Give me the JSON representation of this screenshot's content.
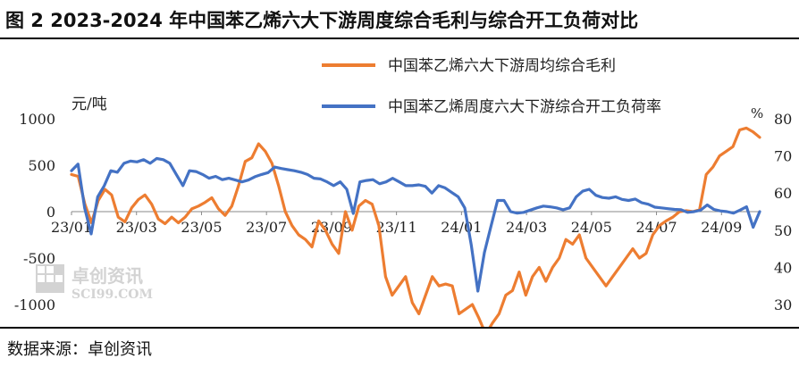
{
  "title": "图 2 2023-2024 年中国苯乙烯六大下游周度综合毛利与综合开工负荷对比",
  "source": "数据来源：卓创资讯",
  "watermark": {
    "cn": "卓创资讯",
    "en": "SCI99.COM"
  },
  "colors": {
    "orange": "#ED7D31",
    "blue": "#4472C4",
    "axis": "#888888",
    "text": "#222222"
  },
  "chart_data": {
    "type": "line",
    "left_axis": {
      "label": "元/吨",
      "ticks": [
        "1000",
        "500",
        "0",
        "-500",
        "-1000"
      ],
      "range": [
        -1000,
        1000
      ]
    },
    "right_axis": {
      "label": "%",
      "ticks": [
        "80",
        "70",
        "60",
        "50",
        "40",
        "30"
      ],
      "range": [
        30,
        80
      ]
    },
    "x_ticks": [
      "23/01",
      "23/03",
      "23/05",
      "23/07",
      "23/09",
      "23/11",
      "24/01",
      "24/03",
      "24/05",
      "24/07",
      "24/09"
    ],
    "legend": {
      "placement": "top-right"
    },
    "series": [
      {
        "name": "中国苯乙烯六大下游周均综合毛利",
        "axis": "left",
        "color": "#ED7D31",
        "values": [
          400,
          380,
          80,
          -120,
          120,
          240,
          180,
          -60,
          -110,
          40,
          130,
          180,
          80,
          -80,
          -130,
          -60,
          -120,
          -60,
          30,
          60,
          100,
          150,
          30,
          -40,
          60,
          280,
          540,
          580,
          730,
          650,
          520,
          280,
          0,
          -150,
          -250,
          -300,
          -380,
          -100,
          -200,
          -350,
          -450,
          0,
          -200,
          60,
          120,
          80,
          -150,
          -700,
          -900,
          -800,
          -700,
          -980,
          -1100,
          -900,
          -700,
          -800,
          -780,
          -800,
          -1100,
          -1050,
          -1000,
          -1150,
          -1320,
          -1200,
          -1100,
          -900,
          -850,
          -650,
          -900,
          -700,
          -600,
          -750,
          -600,
          -500,
          -300,
          -350,
          -250,
          -500,
          -600,
          -700,
          -800,
          -700,
          -600,
          -500,
          -400,
          -500,
          -450,
          -250,
          -150,
          -100,
          -60,
          0,
          10,
          0,
          20,
          400,
          480,
          600,
          650,
          700,
          880,
          900,
          860,
          800
        ]
      },
      {
        "name": "中国苯乙烯周度六大下游综合开工负荷率",
        "axis": "right",
        "color": "#4472C4",
        "values": [
          66,
          67.8,
          56,
          49,
          59,
          62,
          66,
          65.6,
          68,
          68.6,
          68.4,
          69,
          68,
          69.3,
          69,
          68,
          65,
          62,
          66,
          65.8,
          65,
          64,
          64.5,
          63.6,
          64,
          63.5,
          63,
          63.5,
          64.4,
          65,
          65.5,
          67,
          66.6,
          66.3,
          66,
          65.6,
          65,
          64,
          63.8,
          63,
          62,
          63,
          61,
          54.5,
          63,
          63.4,
          63.6,
          62.5,
          63,
          64,
          63,
          62,
          62,
          62.2,
          61.8,
          60,
          62,
          61.4,
          60.2,
          59,
          56,
          46,
          33.6,
          44,
          51,
          58,
          58,
          55,
          54.6,
          54.8,
          55.4,
          56,
          56.5,
          56.3,
          56,
          55.5,
          56,
          59,
          60.5,
          61,
          59.4,
          58.8,
          58.6,
          59,
          58.3,
          58,
          58.4,
          57.4,
          57,
          56.2,
          56,
          55.8,
          55.6,
          55.5,
          54.8,
          55,
          55.4,
          56.8,
          55.6,
          55.2,
          55,
          54.6,
          55.4,
          56.3,
          50.8,
          55
        ]
      }
    ]
  }
}
